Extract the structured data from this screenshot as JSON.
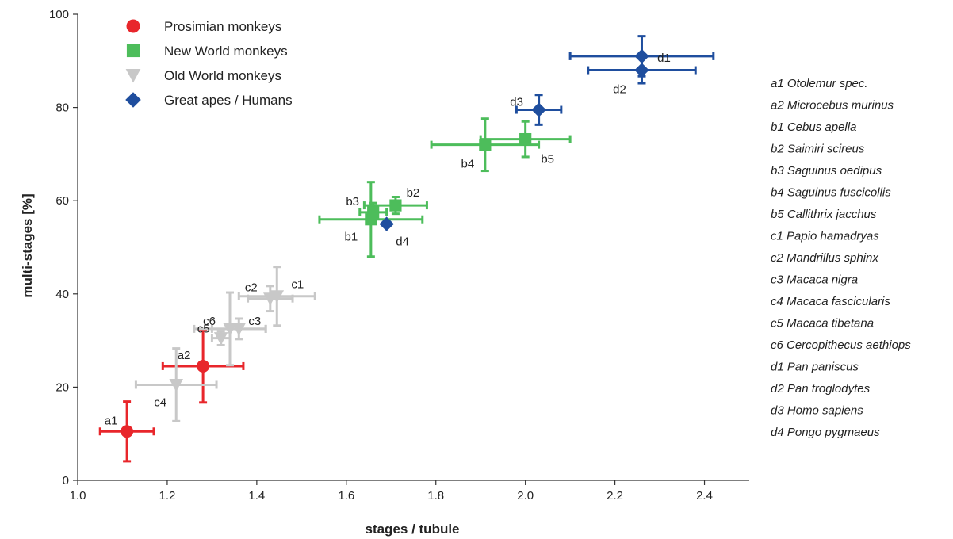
{
  "chart_data": {
    "type": "scatter",
    "xlabel": "stages / tubule",
    "ylabel": "multi-stages [%]",
    "xlim": [
      1.0,
      2.5
    ],
    "ylim": [
      0,
      100
    ],
    "x_ticks": [
      "1.0",
      "1.2",
      "1.4",
      "1.6",
      "1.8",
      "2.0",
      "2.2",
      "2.4"
    ],
    "y_ticks": [
      "0",
      "20",
      "40",
      "60",
      "80",
      "100"
    ],
    "grid": false,
    "legend_position": "top-left",
    "series": [
      {
        "name": "Prosimian monkeys",
        "marker": "circle",
        "color": "#e8262b",
        "points": [
          {
            "label": "a1",
            "x": 1.11,
            "y": 10.5,
            "xerr": 0.06,
            "yerr": 6.4
          },
          {
            "label": "a2",
            "x": 1.28,
            "y": 24.5,
            "xerr": 0.09,
            "yerr": 7.8
          }
        ]
      },
      {
        "name": "New World monkeys",
        "marker": "square",
        "color": "#4dbd5b",
        "points": [
          {
            "label": "b1",
            "x": 1.655,
            "y": 56.0,
            "xerr": 0.115,
            "yerr": 8.0
          },
          {
            "label": "b2",
            "x": 1.71,
            "y": 59.0,
            "xerr": 0.07,
            "yerr": 1.8
          },
          {
            "label": "b3",
            "x": 1.66,
            "y": 57.5,
            "xerr": 0.03,
            "yerr": 2.0
          },
          {
            "label": "b4",
            "x": 1.91,
            "y": 72.0,
            "xerr": 0.12,
            "yerr": 5.6
          },
          {
            "label": "b5",
            "x": 2.0,
            "y": 73.2,
            "xerr": 0.1,
            "yerr": 3.8
          }
        ]
      },
      {
        "name": "Old World monkeys",
        "marker": "triangle-down",
        "color": "#c8c8c8",
        "points": [
          {
            "label": "c1",
            "x": 1.445,
            "y": 39.5,
            "xerr": 0.085,
            "yerr": 6.3
          },
          {
            "label": "c2",
            "x": 1.43,
            "y": 39.0,
            "xerr": 0.05,
            "yerr": 2.7
          },
          {
            "label": "c3",
            "x": 1.36,
            "y": 32.5,
            "xerr": 0.06,
            "yerr": 2.2
          },
          {
            "label": "c4",
            "x": 1.22,
            "y": 20.5,
            "xerr": 0.09,
            "yerr": 7.8
          },
          {
            "label": "c5",
            "x": 1.32,
            "y": 30.5,
            "xerr": 0.02,
            "yerr": 1.5
          },
          {
            "label": "c6",
            "x": 1.34,
            "y": 32.5,
            "xerr": 0.08,
            "yerr": 7.8
          }
        ]
      },
      {
        "name": "Great apes / Humans",
        "marker": "diamond",
        "color": "#1f4e9e",
        "points": [
          {
            "label": "d1",
            "x": 2.26,
            "y": 91.0,
            "xerr": 0.16,
            "yerr": 4.3
          },
          {
            "label": "d2",
            "x": 2.26,
            "y": 88.0,
            "xerr": 0.12,
            "yerr": 2.8
          },
          {
            "label": "d3",
            "x": 2.03,
            "y": 79.5,
            "xerr": 0.05,
            "yerr": 3.2
          },
          {
            "label": "d4",
            "x": 1.69,
            "y": 55.0,
            "xerr": 0.0,
            "yerr": 0.0
          }
        ]
      }
    ],
    "species_legend": [
      "a1 Otolemur spec.",
      "a2 Microcebus murinus",
      "b1 Cebus apella",
      "b2 Saimiri scireus",
      "b3 Saguinus oedipus",
      "b4 Saguinus fuscicollis",
      "b5 Callithrix jacchus",
      "c1 Papio hamadryas",
      "c2 Mandrillus sphinx",
      "c3 Macaca nigra",
      "c4 Macaca fascicularis",
      "c5 Macaca tibetana",
      "c6 Cercopithecus aethiops",
      "d1 Pan paniscus",
      "d2 Pan troglodytes",
      "d3 Homo sapiens",
      "d4 Pongo pygmaeus"
    ]
  }
}
